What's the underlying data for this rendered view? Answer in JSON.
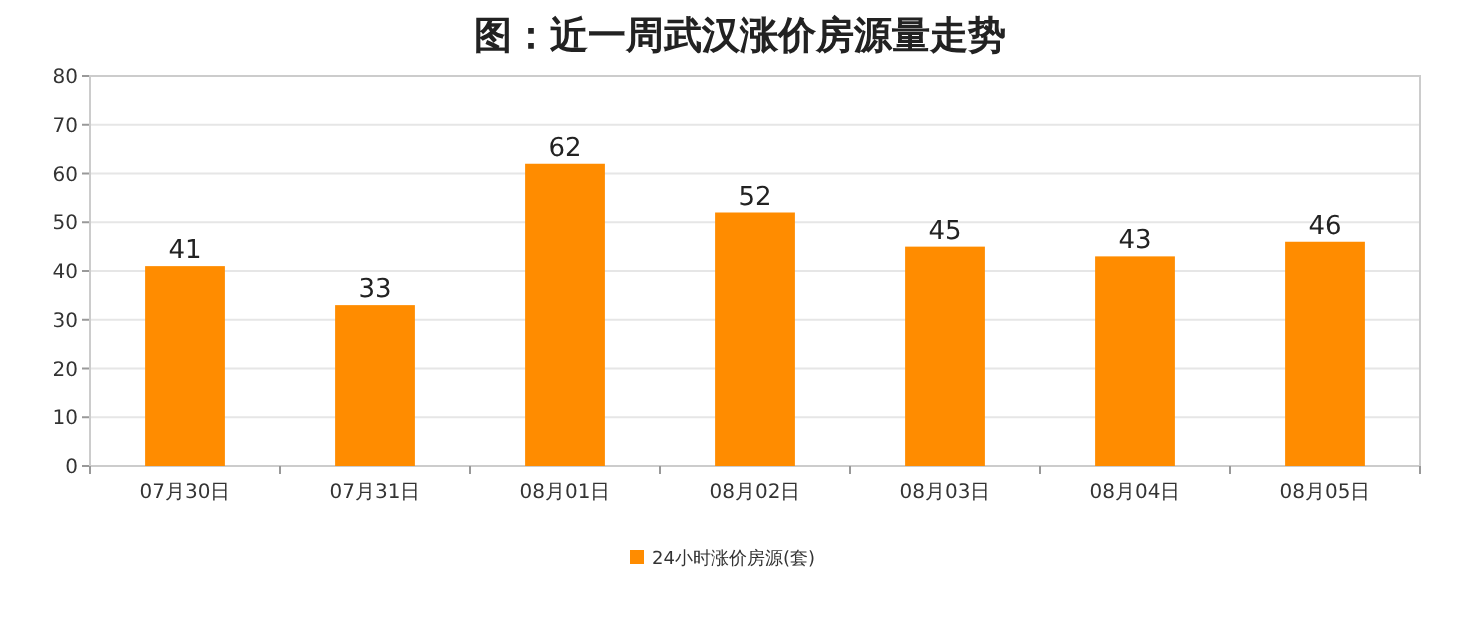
{
  "chart_data": {
    "type": "bar",
    "title": "图：近一周武汉涨价房源量走势",
    "categories": [
      "07月30日",
      "07月31日",
      "08月01日",
      "08月02日",
      "08月03日",
      "08月04日",
      "08月05日"
    ],
    "series": [
      {
        "name": "24小时涨价房源(套)",
        "color": "#ff8c00",
        "values": [
          41,
          33,
          62,
          52,
          45,
          43,
          46
        ]
      }
    ],
    "ylim": [
      0,
      80
    ],
    "yticks": [
      0,
      10,
      20,
      30,
      40,
      50,
      60,
      70,
      80
    ],
    "grid": "y",
    "legend": "bottom",
    "data_labels": true
  }
}
